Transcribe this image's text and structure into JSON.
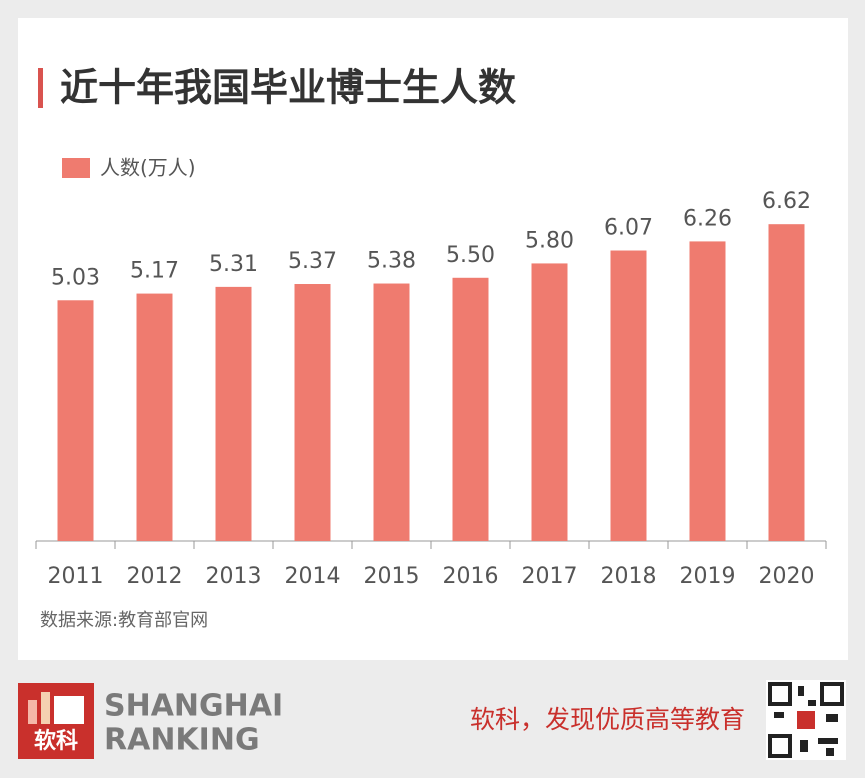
{
  "chart_data": {
    "type": "bar",
    "title": "近十年我国毕业博士生人数",
    "categories": [
      "2011",
      "2012",
      "2013",
      "2014",
      "2015",
      "2016",
      "2017",
      "2018",
      "2019",
      "2020"
    ],
    "series": [
      {
        "name": "人数(万人)",
        "color": "#ef7b6f",
        "values": [
          5.03,
          5.17,
          5.31,
          5.37,
          5.38,
          5.5,
          5.8,
          6.07,
          6.26,
          6.62
        ],
        "value_labels": [
          "5.03",
          "5.17",
          "5.31",
          "5.37",
          "5.38",
          "5.50",
          "5.80",
          "6.07",
          "6.26",
          "6.62"
        ]
      }
    ],
    "ylim": [
      0,
      7
    ],
    "grid": false,
    "legend": "top-left",
    "source": "数据来源:教育部官网"
  },
  "brand": {
    "logo": "软科",
    "name_line1": "SHANGHAI",
    "name_line2": "RANKING",
    "slogan": "软科，发现优质高等教育"
  }
}
